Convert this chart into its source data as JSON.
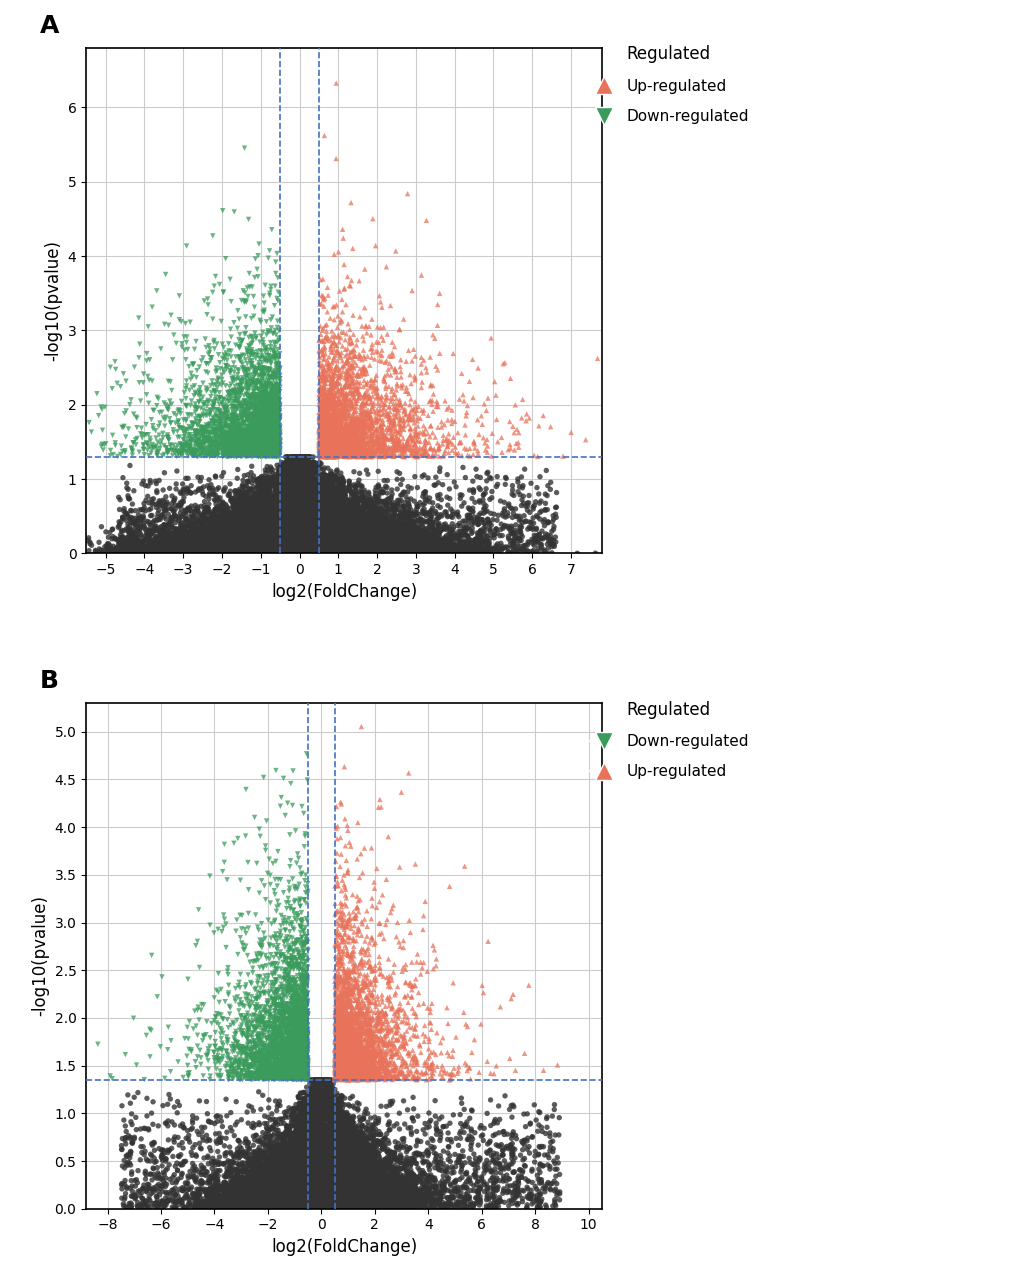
{
  "panel_A": {
    "title": "A",
    "xlabel": "log2(FoldChange)",
    "ylabel": "-log10(pvalue)",
    "xlim": [
      -5.5,
      7.8
    ],
    "ylim": [
      0,
      6.8
    ],
    "xticks": [
      -5,
      -4,
      -3,
      -2,
      -1,
      0,
      1,
      2,
      3,
      4,
      5,
      6,
      7
    ],
    "yticks": [
      0,
      1,
      2,
      3,
      4,
      5,
      6
    ],
    "vline1": -0.5,
    "vline2": 0.5,
    "hline": 1.3,
    "up_color": "#E8735A",
    "down_color": "#3A9B5C",
    "black_color": "#333333",
    "legend_title": "Regulated",
    "legend_up": "Up-regulated",
    "legend_down": "Down-regulated",
    "legend_order": [
      "up",
      "down"
    ]
  },
  "panel_B": {
    "title": "B",
    "xlabel": "log2(FoldChange)",
    "ylabel": "-log10(pvalue)",
    "xlim": [
      -8.8,
      10.5
    ],
    "ylim": [
      0.0,
      5.3
    ],
    "xticks": [
      -8,
      -6,
      -4,
      -2,
      0,
      2,
      4,
      6,
      8,
      10
    ],
    "yticks": [
      0.0,
      0.5,
      1.0,
      1.5,
      2.0,
      2.5,
      3.0,
      3.5,
      4.0,
      4.5,
      5.0
    ],
    "vline1": -0.5,
    "vline2": 0.5,
    "hline": 1.35,
    "up_color": "#E8735A",
    "down_color": "#3A9B5C",
    "black_color": "#333333",
    "legend_title": "Regulated",
    "legend_down": "Down-regulated",
    "legend_up": "Up-regulated",
    "legend_order": [
      "down",
      "up"
    ]
  },
  "figure_bg": "#FFFFFF",
  "axes_bg": "#FFFFFF",
  "grid_color": "#CCCCCC",
  "marker_size": 15,
  "random_seed": 42
}
